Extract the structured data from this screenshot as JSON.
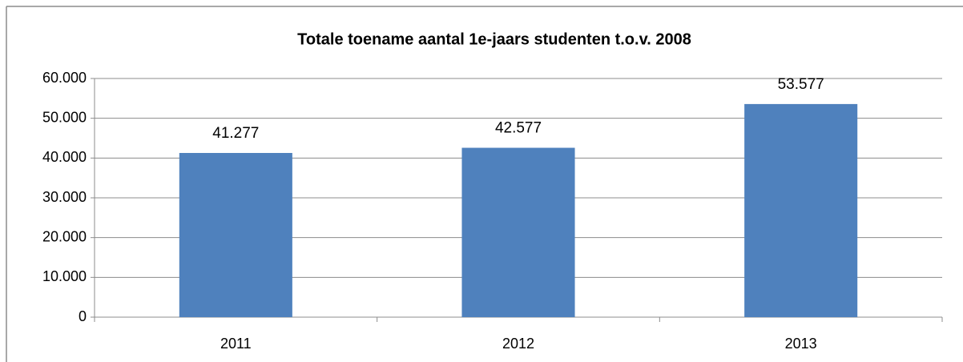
{
  "chart_data": {
    "type": "bar",
    "title": "Totale toename aantal 1e-jaars studenten t.o.v. 2008",
    "categories": [
      "2011",
      "2012",
      "2013"
    ],
    "values": [
      41277,
      42577,
      53577
    ],
    "value_labels": [
      "41.277",
      "42.577",
      "53.577"
    ],
    "color": "#4f81bd",
    "ylim": [
      0,
      60000
    ],
    "yticks": [
      0,
      {
        "value": 10000,
        "label": "10.000"
      },
      {
        "value": 20000,
        "label": "20.000"
      },
      {
        "value": 30000,
        "label": "30.000"
      },
      {
        "value": 40000,
        "label": "40.000"
      },
      {
        "value": 50000,
        "label": "50.000"
      },
      {
        "value": 60000,
        "label": "60.000"
      }
    ],
    "grid": true
  }
}
